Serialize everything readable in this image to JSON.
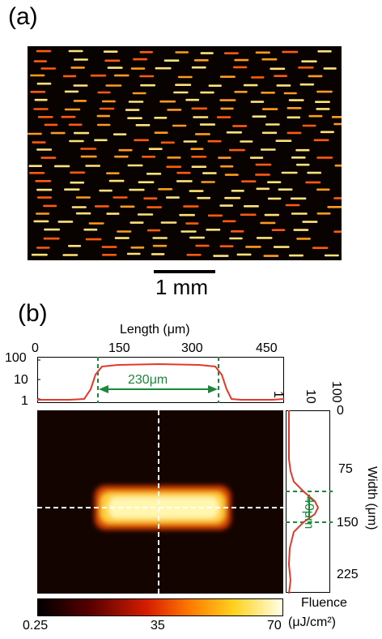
{
  "figure": {
    "panel_a_label": "(a)",
    "panel_b_label": "(b)",
    "scale_bar_label": "1 mm",
    "length_axis": {
      "title": "Length (μm)",
      "ticks": [
        "0",
        "150",
        "300",
        "450"
      ]
    },
    "top_profile": {
      "log_ticks": [
        "100",
        "10",
        "1"
      ],
      "annotation": "230μm"
    },
    "width_axis": {
      "title": "Width (μm)",
      "ticks": [
        "0",
        "75",
        "150",
        "225"
      ]
    },
    "side_profile": {
      "log_ticks": [
        "1",
        "10",
        "100"
      ],
      "annotation": "40μm"
    },
    "colorbar": {
      "title": "Fluence",
      "unit": "(μJ/cm²)",
      "ticks": [
        "0.25",
        "35",
        "70"
      ]
    }
  },
  "colors": {
    "profile_line": "#e23a2a",
    "annotation_green": "#1a8a3a",
    "crosshair": "#ffffff"
  }
}
